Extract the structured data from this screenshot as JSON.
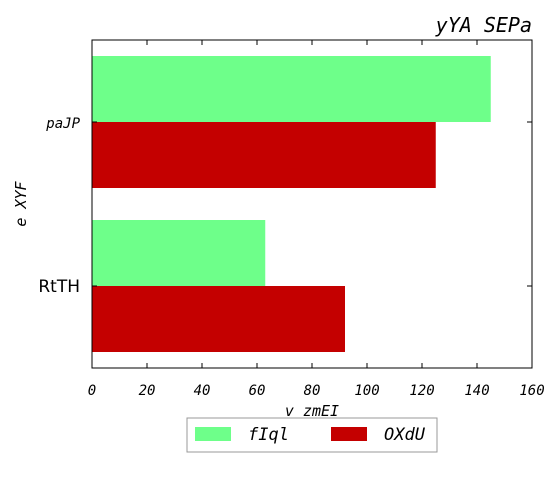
{
  "chart_data": {
    "type": "bar",
    "orientation": "horizontal",
    "title": "yYA SEPa",
    "xlabel": "v zmEI",
    "ylabel": "e XYF",
    "categories": [
      "RtTH",
      "paJP"
    ],
    "series": [
      {
        "name": "fIql",
        "color": "#6eff8a",
        "values": [
          63,
          145
        ]
      },
      {
        "name": "OXdU",
        "color": "#c40000",
        "values": [
          92,
          125
        ]
      }
    ],
    "xlim": [
      0,
      160
    ],
    "xticks": [
      0,
      20,
      40,
      60,
      80,
      100,
      120,
      140,
      160
    ],
    "grid": false,
    "legend_position": "bottom-center"
  }
}
